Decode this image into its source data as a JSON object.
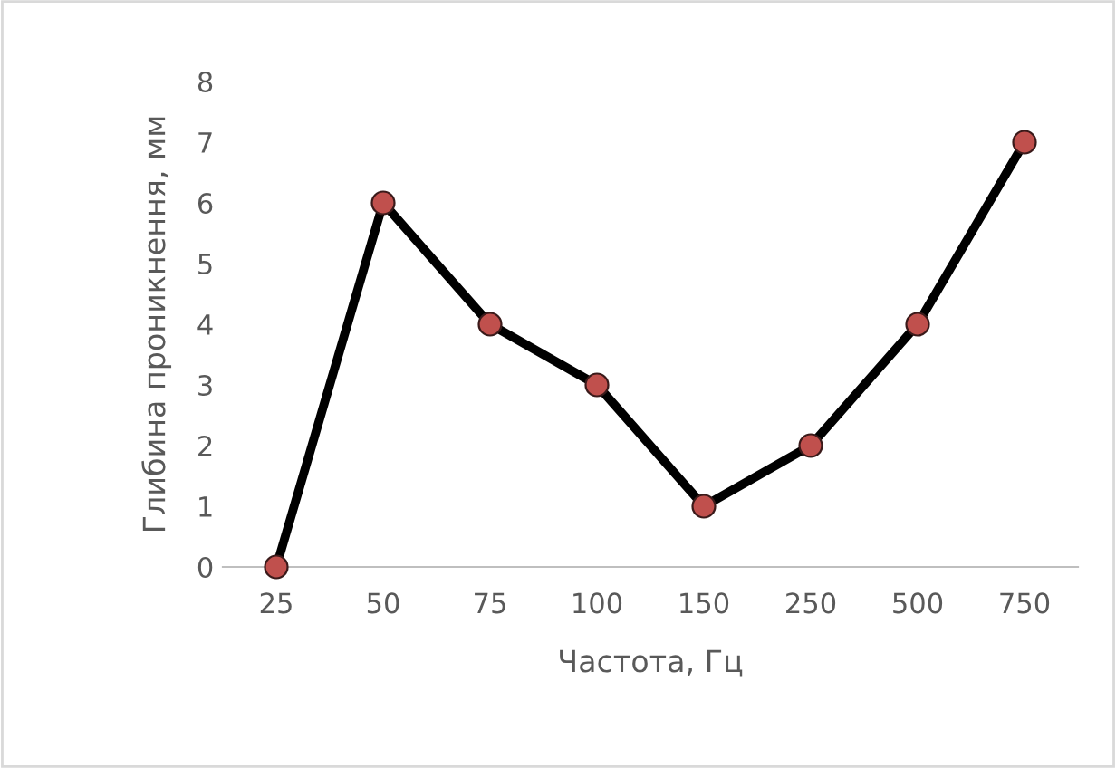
{
  "chart_data": {
    "type": "line",
    "xlabel": "Частота, Гц",
    "ylabel": "Глибина проникнення, мм",
    "categories": [
      "25",
      "50",
      "75",
      "100",
      "150",
      "250",
      "500",
      "750"
    ],
    "series": [
      {
        "color": "#000000",
        "values": [
          0,
          6,
          4,
          3,
          1,
          2,
          4,
          7
        ]
      }
    ],
    "marker": "circle",
    "line_style": "solid",
    "ylim": [
      0,
      8
    ],
    "yticks": [
      0,
      1,
      2,
      3,
      4,
      5,
      6,
      7,
      8
    ],
    "grid": false,
    "legend": false
  }
}
